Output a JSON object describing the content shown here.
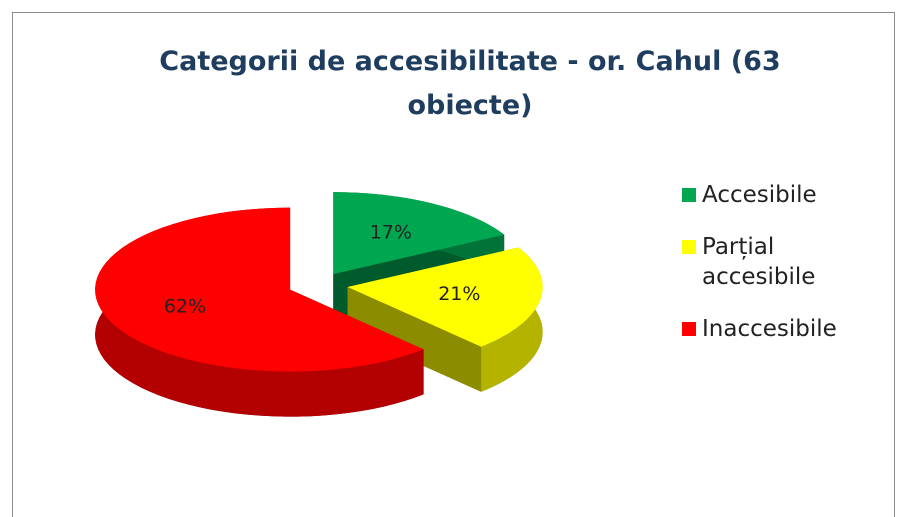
{
  "chart_data": {
    "type": "pie",
    "title": "Categorii de accesibilitate - or. Cahul (63 obiecte)",
    "categories": [
      "Accesibile",
      "Parțial accesibile",
      "Inaccesibile"
    ],
    "values": [
      17,
      21,
      62
    ],
    "value_labels": [
      "17%",
      "21%",
      "62%"
    ],
    "colors": [
      "#00a650",
      "#ffff00",
      "#ff0000"
    ],
    "legend": "right"
  }
}
